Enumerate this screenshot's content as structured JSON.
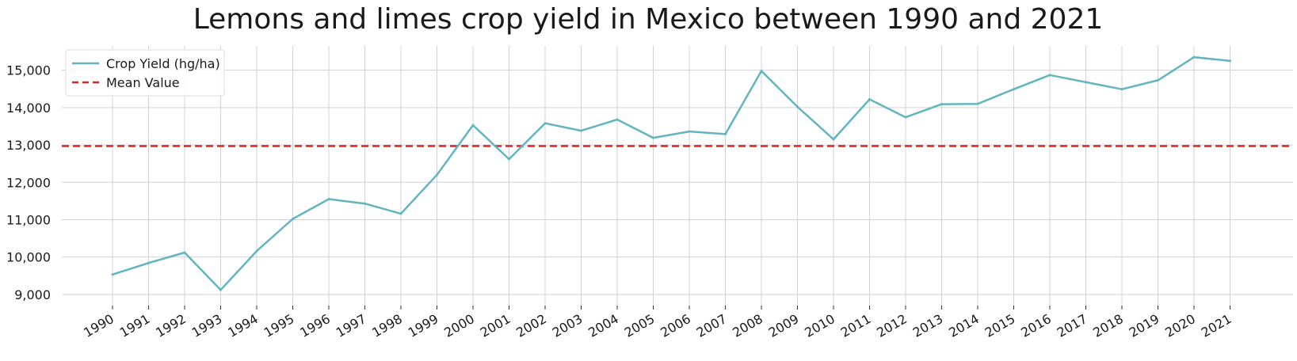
{
  "chart_data": {
    "type": "line",
    "title": "Lemons and limes crop yield in Mexico between 1990 and 2021",
    "xlabel": "",
    "ylabel": "",
    "x": [
      "1990",
      "1991",
      "1992",
      "1993",
      "1994",
      "1995",
      "1996",
      "1997",
      "1998",
      "1999",
      "2000",
      "2001",
      "2002",
      "2003",
      "2004",
      "2005",
      "2006",
      "2007",
      "2008",
      "2009",
      "2010",
      "2011",
      "2012",
      "2013",
      "2014",
      "2015",
      "2016",
      "2017",
      "2018",
      "2019",
      "2020",
      "2021"
    ],
    "series": [
      {
        "name": "Crop Yield (hg/ha)",
        "color": "#62b5c0",
        "values": [
          9530,
          9840,
          10120,
          9120,
          10160,
          11020,
          11550,
          11430,
          11160,
          12200,
          13530,
          12620,
          13580,
          13380,
          13680,
          13190,
          13360,
          13290,
          14980,
          14020,
          13150,
          14220,
          13740,
          14090,
          14100,
          14490,
          14870,
          14680,
          14490,
          14730,
          15350,
          15250
        ]
      }
    ],
    "mean_line": {
      "name": "Mean Value",
      "value": 12970,
      "color": "#d62728",
      "style": "dashed"
    },
    "yticks": [
      9000,
      10000,
      11000,
      12000,
      13000,
      14000,
      15000
    ],
    "ytick_labels": [
      "9,000",
      "10,000",
      "11,000",
      "12,000",
      "13,000",
      "14,000",
      "15,000"
    ],
    "ylim": [
      8700,
      15650
    ],
    "grid": true,
    "legend_position": "top-left"
  }
}
